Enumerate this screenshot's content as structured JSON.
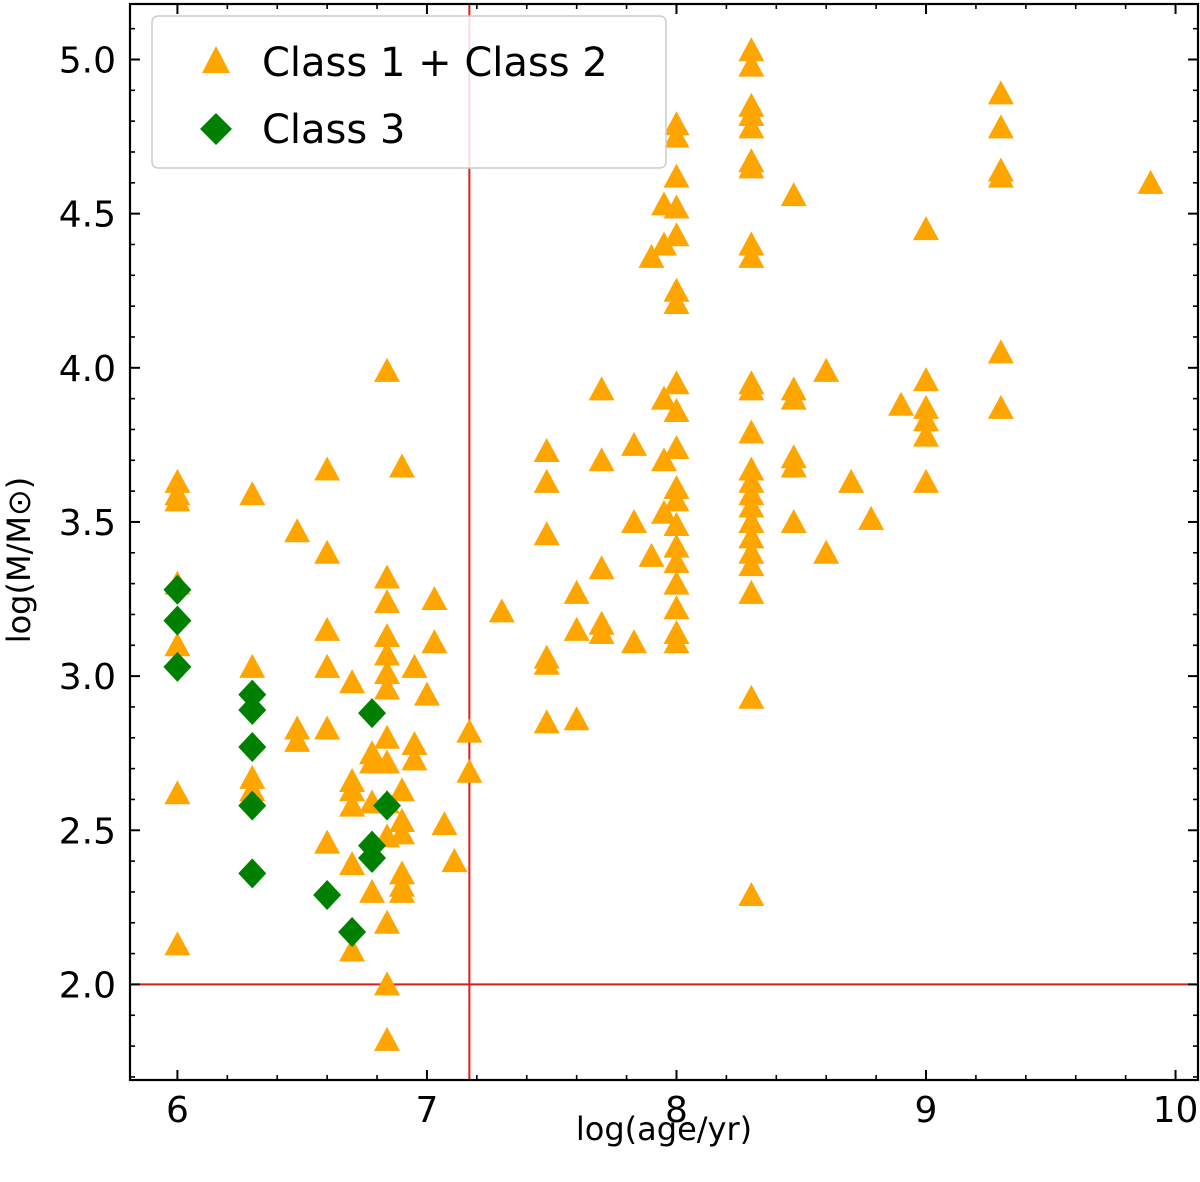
{
  "chart_data": {
    "type": "scatter",
    "xlabel": "log(age/yr)",
    "ylabel": "log(M/M⊙)",
    "xlim": [
      5.81,
      10.09
    ],
    "ylim": [
      1.69,
      5.18
    ],
    "x_ticks": [
      6,
      7,
      8,
      9,
      10
    ],
    "y_ticks": [
      2.0,
      2.5,
      3.0,
      3.5,
      4.0,
      4.5,
      5.0
    ],
    "x_tick_labels": [
      "6",
      "7",
      "8",
      "9",
      "10"
    ],
    "y_tick_labels": [
      "2.0",
      "2.5",
      "3.0",
      "3.5",
      "4.0",
      "4.5",
      "5.0"
    ],
    "grid": false,
    "legend_position": "top-left",
    "reference_lines": [
      {
        "orientation": "vertical",
        "value": 7.17,
        "color": "#e31a1c"
      },
      {
        "orientation": "horizontal",
        "value": 2.0,
        "color": "#e31a1c"
      }
    ],
    "series": [
      {
        "name": "Class 1 + Class 2",
        "marker": "triangle",
        "color": "#ffa500",
        "points": [
          [
            6.0,
            3.63
          ],
          [
            6.0,
            3.59
          ],
          [
            6.0,
            3.57
          ],
          [
            6.0,
            3.3
          ],
          [
            6.0,
            3.1
          ],
          [
            6.0,
            2.62
          ],
          [
            6.0,
            2.13
          ],
          [
            6.3,
            3.59
          ],
          [
            6.3,
            3.03
          ],
          [
            6.3,
            2.67
          ],
          [
            6.3,
            2.63
          ],
          [
            6.48,
            3.47
          ],
          [
            6.48,
            2.83
          ],
          [
            6.48,
            2.79
          ],
          [
            6.6,
            3.67
          ],
          [
            6.6,
            3.4
          ],
          [
            6.6,
            3.15
          ],
          [
            6.6,
            3.03
          ],
          [
            6.6,
            2.83
          ],
          [
            6.6,
            2.46
          ],
          [
            6.7,
            2.98
          ],
          [
            6.7,
            2.66
          ],
          [
            6.7,
            2.63
          ],
          [
            6.7,
            2.58
          ],
          [
            6.7,
            2.39
          ],
          [
            6.7,
            2.11
          ],
          [
            6.78,
            2.75
          ],
          [
            6.78,
            2.72
          ],
          [
            6.78,
            2.59
          ],
          [
            6.78,
            2.3
          ],
          [
            6.84,
            3.99
          ],
          [
            6.84,
            3.32
          ],
          [
            6.84,
            3.24
          ],
          [
            6.84,
            3.13
          ],
          [
            6.84,
            3.07
          ],
          [
            6.84,
            3.01
          ],
          [
            6.84,
            2.96
          ],
          [
            6.84,
            2.8
          ],
          [
            6.84,
            2.72
          ],
          [
            6.84,
            2.59
          ],
          [
            6.84,
            2.48
          ],
          [
            6.84,
            2.2
          ],
          [
            6.84,
            2.0
          ],
          [
            6.84,
            1.82
          ],
          [
            6.9,
            3.68
          ],
          [
            6.9,
            2.63
          ],
          [
            6.9,
            2.53
          ],
          [
            6.9,
            2.49
          ],
          [
            6.9,
            2.36
          ],
          [
            6.9,
            2.32
          ],
          [
            6.9,
            2.3
          ],
          [
            6.95,
            3.03
          ],
          [
            6.95,
            2.78
          ],
          [
            6.95,
            2.73
          ],
          [
            7.0,
            2.94
          ],
          [
            7.03,
            3.25
          ],
          [
            7.03,
            3.11
          ],
          [
            7.07,
            2.52
          ],
          [
            7.11,
            2.4
          ],
          [
            7.17,
            2.82
          ],
          [
            7.17,
            2.69
          ],
          [
            7.3,
            3.21
          ],
          [
            7.48,
            3.73
          ],
          [
            7.48,
            3.63
          ],
          [
            7.48,
            3.46
          ],
          [
            7.48,
            3.06
          ],
          [
            7.48,
            3.04
          ],
          [
            7.48,
            2.85
          ],
          [
            7.6,
            3.27
          ],
          [
            7.6,
            3.15
          ],
          [
            7.6,
            2.86
          ],
          [
            7.7,
            3.93
          ],
          [
            7.7,
            3.7
          ],
          [
            7.7,
            3.35
          ],
          [
            7.7,
            3.17
          ],
          [
            7.7,
            3.14
          ],
          [
            7.83,
            3.75
          ],
          [
            7.83,
            3.5
          ],
          [
            7.83,
            3.11
          ],
          [
            7.9,
            4.36
          ],
          [
            7.9,
            3.39
          ],
          [
            7.95,
            4.53
          ],
          [
            7.95,
            4.4
          ],
          [
            7.95,
            3.9
          ],
          [
            7.95,
            3.7
          ],
          [
            7.95,
            3.53
          ],
          [
            8.0,
            4.79
          ],
          [
            8.0,
            4.75
          ],
          [
            8.0,
            4.62
          ],
          [
            8.0,
            4.52
          ],
          [
            8.0,
            4.43
          ],
          [
            8.0,
            4.25
          ],
          [
            8.0,
            4.21
          ],
          [
            8.0,
            3.95
          ],
          [
            8.0,
            3.86
          ],
          [
            8.0,
            3.74
          ],
          [
            8.0,
            3.61
          ],
          [
            8.0,
            3.57
          ],
          [
            8.0,
            3.49
          ],
          [
            8.0,
            3.42
          ],
          [
            8.0,
            3.37
          ],
          [
            8.0,
            3.3
          ],
          [
            8.0,
            3.22
          ],
          [
            8.0,
            3.14
          ],
          [
            8.0,
            3.11
          ],
          [
            8.3,
            5.03
          ],
          [
            8.3,
            4.98
          ],
          [
            8.3,
            4.85
          ],
          [
            8.3,
            4.82
          ],
          [
            8.3,
            4.78
          ],
          [
            8.3,
            4.67
          ],
          [
            8.3,
            4.65
          ],
          [
            8.3,
            4.4
          ],
          [
            8.3,
            4.36
          ],
          [
            8.3,
            3.95
          ],
          [
            8.3,
            3.93
          ],
          [
            8.3,
            3.79
          ],
          [
            8.3,
            3.67
          ],
          [
            8.3,
            3.63
          ],
          [
            8.3,
            3.59
          ],
          [
            8.3,
            3.55
          ],
          [
            8.3,
            3.5
          ],
          [
            8.3,
            3.45
          ],
          [
            8.3,
            3.4
          ],
          [
            8.3,
            3.36
          ],
          [
            8.3,
            3.27
          ],
          [
            8.3,
            2.93
          ],
          [
            8.3,
            2.29
          ],
          [
            8.47,
            4.56
          ],
          [
            8.47,
            3.93
          ],
          [
            8.47,
            3.9
          ],
          [
            8.47,
            3.71
          ],
          [
            8.47,
            3.68
          ],
          [
            8.47,
            3.5
          ],
          [
            8.6,
            3.99
          ],
          [
            8.6,
            3.4
          ],
          [
            8.7,
            3.63
          ],
          [
            8.78,
            3.51
          ],
          [
            8.9,
            3.88
          ],
          [
            9.0,
            4.45
          ],
          [
            9.0,
            3.96
          ],
          [
            9.0,
            3.87
          ],
          [
            9.0,
            3.83
          ],
          [
            9.0,
            3.78
          ],
          [
            9.0,
            3.63
          ],
          [
            9.3,
            4.89
          ],
          [
            9.3,
            4.78
          ],
          [
            9.3,
            4.64
          ],
          [
            9.3,
            4.62
          ],
          [
            9.3,
            4.05
          ],
          [
            9.3,
            3.87
          ],
          [
            9.9,
            4.6
          ]
        ]
      },
      {
        "name": "Class 3",
        "marker": "diamond",
        "color": "#008000",
        "points": [
          [
            6.0,
            3.28
          ],
          [
            6.0,
            3.18
          ],
          [
            6.0,
            3.03
          ],
          [
            6.3,
            2.94
          ],
          [
            6.3,
            2.89
          ],
          [
            6.3,
            2.77
          ],
          [
            6.3,
            2.58
          ],
          [
            6.3,
            2.36
          ],
          [
            6.6,
            2.29
          ],
          [
            6.7,
            2.17
          ],
          [
            6.78,
            2.88
          ],
          [
            6.78,
            2.45
          ],
          [
            6.78,
            2.41
          ],
          [
            6.84,
            2.58
          ]
        ]
      }
    ]
  }
}
